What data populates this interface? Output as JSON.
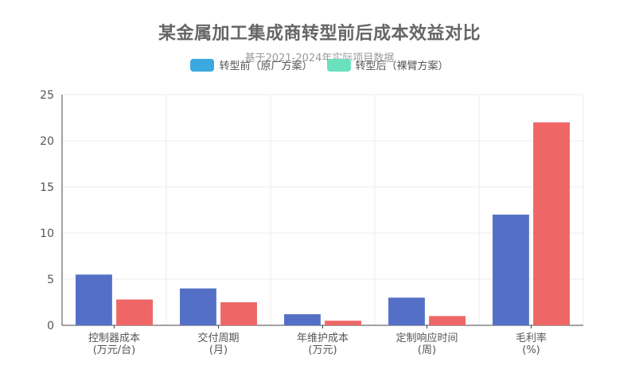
{
  "chart_data": {
    "type": "bar",
    "title": "某金属加工集成商转型前后成本效益对比",
    "subtitle": "基于2021-2024年实际项目数据",
    "categories": [
      [
        "控制器成本",
        "(万元/台)"
      ],
      [
        "交付周期",
        "(月)"
      ],
      [
        "年维护成本",
        "(万元)"
      ],
      [
        "定制响应时间",
        "(周)"
      ],
      [
        "毛利率",
        "(%)"
      ]
    ],
    "series": [
      {
        "name": "转型前（原厂方案）",
        "values": [
          5.5,
          4,
          1.2,
          3,
          12
        ],
        "color": "#5470c6"
      },
      {
        "name": "转型后（裸臂方案）",
        "values": [
          2.8,
          2.5,
          0.5,
          1,
          22
        ],
        "color": "#ee6666"
      }
    ],
    "legend_colors": [
      "#3ba9df",
      "#6be0bd"
    ],
    "ylim": [
      0,
      25
    ],
    "yticks": [
      0,
      5,
      10,
      15,
      20,
      25
    ],
    "xlabel": "",
    "ylabel": "",
    "grid": true,
    "legend_position": "top-center"
  }
}
